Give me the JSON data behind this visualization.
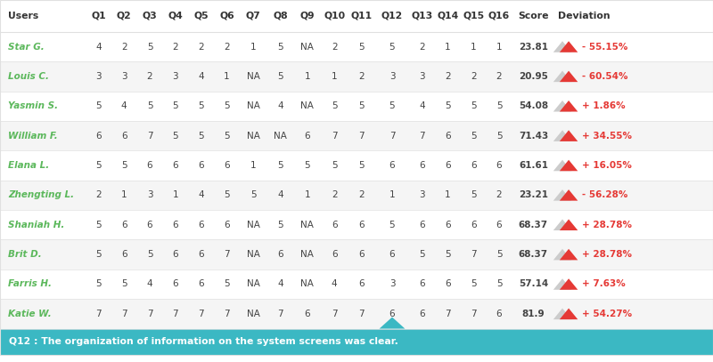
{
  "columns": [
    "Users",
    "Q1",
    "Q2",
    "Q3",
    "Q4",
    "Q5",
    "Q6",
    "Q7",
    "Q8",
    "Q9",
    "Q10",
    "Q11",
    "Q12",
    "Q13",
    "Q14",
    "Q15",
    "Q16",
    "Score",
    "Deviation"
  ],
  "rows": [
    [
      "Star G.",
      "4",
      "2",
      "5",
      "2",
      "2",
      "2",
      "1",
      "5",
      "NA",
      "2",
      "5",
      "5",
      "2",
      "1",
      "1",
      "1",
      "23.81",
      "- 55.15%",
      "-"
    ],
    [
      "Louis C.",
      "3",
      "3",
      "2",
      "3",
      "4",
      "1",
      "NA",
      "5",
      "1",
      "1",
      "2",
      "3",
      "3",
      "2",
      "2",
      "2",
      "20.95",
      "- 60.54%",
      "-"
    ],
    [
      "Yasmin S.",
      "5",
      "4",
      "5",
      "5",
      "5",
      "5",
      "NA",
      "4",
      "NA",
      "5",
      "5",
      "5",
      "4",
      "5",
      "5",
      "5",
      "54.08",
      "+ 1.86%",
      "+"
    ],
    [
      "William F.",
      "6",
      "6",
      "7",
      "5",
      "5",
      "5",
      "NA",
      "NA",
      "6",
      "7",
      "7",
      "7",
      "7",
      "6",
      "5",
      "5",
      "71.43",
      "+ 34.55%",
      "+"
    ],
    [
      "Elana L.",
      "5",
      "5",
      "6",
      "6",
      "6",
      "6",
      "1",
      "5",
      "5",
      "5",
      "5",
      "6",
      "6",
      "6",
      "6",
      "6",
      "61.61",
      "+ 16.05%",
      "+"
    ],
    [
      "Zhengting L.",
      "2",
      "1",
      "3",
      "1",
      "4",
      "5",
      "5",
      "4",
      "1",
      "2",
      "2",
      "1",
      "3",
      "1",
      "5",
      "2",
      "23.21",
      "- 56.28%",
      "-"
    ],
    [
      "Shaniah H.",
      "5",
      "6",
      "6",
      "6",
      "6",
      "6",
      "NA",
      "5",
      "NA",
      "6",
      "6",
      "5",
      "6",
      "6",
      "6",
      "6",
      "68.37",
      "+ 28.78%",
      "+"
    ],
    [
      "Brit D.",
      "5",
      "6",
      "5",
      "6",
      "6",
      "7",
      "NA",
      "6",
      "NA",
      "6",
      "6",
      "6",
      "5",
      "5",
      "7",
      "5",
      "68.37",
      "+ 28.78%",
      "+"
    ],
    [
      "Farris H.",
      "5",
      "5",
      "4",
      "6",
      "6",
      "5",
      "NA",
      "4",
      "NA",
      "4",
      "6",
      "3",
      "6",
      "6",
      "5",
      "5",
      "57.14",
      "+ 7.63%",
      "+"
    ],
    [
      "Katie W.",
      "7",
      "7",
      "7",
      "7",
      "7",
      "7",
      "NA",
      "7",
      "6",
      "7",
      "7",
      "6",
      "6",
      "7",
      "7",
      "6",
      "81.9",
      "+ 54.27%",
      "+"
    ]
  ],
  "user_color": "#5cb85c",
  "header_text": "#333333",
  "data_text": "#444444",
  "grid_color": "#e0e0e0",
  "footer_bg": "#3bb8c3",
  "footer_text": "#ffffff",
  "footer_label": "Q12 : The organization of information on the system screens was clear.",
  "negative_color": "#e53935",
  "positive_color": "#43a047",
  "triangle_gray": "#cccccc",
  "row_bg_even": "#ffffff",
  "row_bg_odd": "#f5f5f5",
  "figwidth": 8.0,
  "figheight": 4.07,
  "dpi": 100
}
